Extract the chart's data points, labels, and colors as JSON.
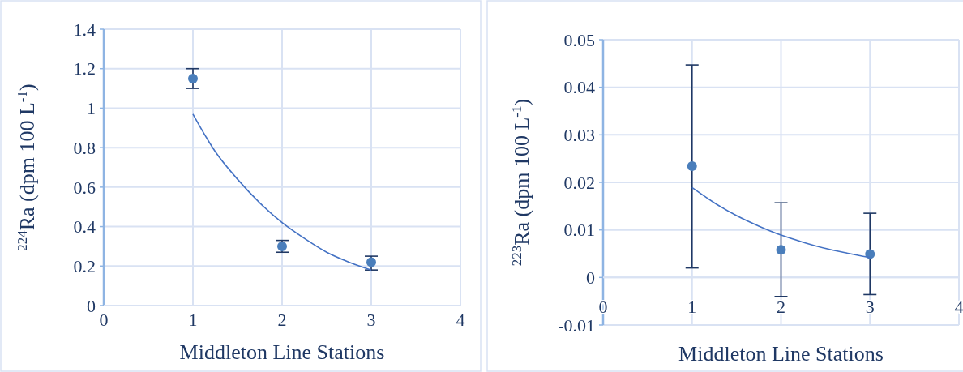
{
  "chart_data": [
    {
      "type": "scatter",
      "xlabel": "Middleton Line Stations",
      "ylabel": "$^{224}$Ra (dpm 100 L$^{-1}$)",
      "xlim": [
        0,
        4
      ],
      "xticks": [
        0,
        1,
        2,
        3,
        4
      ],
      "ylim": [
        0,
        1.4
      ],
      "yticks": [
        0,
        0.2,
        0.4,
        0.6,
        0.8,
        1,
        1.2,
        1.4
      ],
      "grid": true,
      "marker": "circle",
      "series": [
        {
          "color": "#4a7ebb",
          "x": [
            1,
            2,
            3
          ],
          "values": [
            1.15,
            0.3,
            0.22
          ],
          "errors": [
            [
              1.1,
              1.2
            ],
            [
              0.27,
              0.33
            ],
            [
              0.18,
              0.25
            ]
          ]
        },
        {
          "type": "line",
          "color": "#4472c4",
          "marker": "none",
          "x": [
            1,
            1.25,
            1.5,
            1.75,
            2,
            2.25,
            2.5,
            2.75,
            3
          ],
          "values": [
            0.97,
            0.78,
            0.64,
            0.52,
            0.42,
            0.34,
            0.27,
            0.22,
            0.18
          ]
        }
      ]
    },
    {
      "type": "scatter",
      "xlabel": "Middleton Line Stations",
      "ylabel": "$^{223}$Ra (dpm 100 L$^{-1}$)",
      "xlim": [
        0,
        4
      ],
      "xticks": [
        0,
        1,
        2,
        3,
        4
      ],
      "ylim": [
        -0.01,
        0.05
      ],
      "yticks": [
        -0.01,
        0,
        0.01,
        0.02,
        0.03,
        0.04,
        0.05
      ],
      "grid": true,
      "marker": "circle",
      "series": [
        {
          "color": "#4a7ebb",
          "x": [
            1,
            2,
            3
          ],
          "values": [
            0.0234,
            0.0058,
            0.0049
          ],
          "errors": [
            [
              0.002,
              0.0447
            ],
            [
              -0.004,
              0.0157
            ],
            [
              -0.0036,
              0.0135
            ]
          ]
        },
        {
          "type": "line",
          "color": "#4472c4",
          "marker": "none",
          "x": [
            1,
            1.25,
            1.5,
            1.75,
            2,
            2.25,
            2.5,
            2.75,
            3
          ],
          "values": [
            0.0189,
            0.0157,
            0.013,
            0.0108,
            0.0089,
            0.0074,
            0.0061,
            0.0051,
            0.0042
          ]
        }
      ]
    }
  ]
}
